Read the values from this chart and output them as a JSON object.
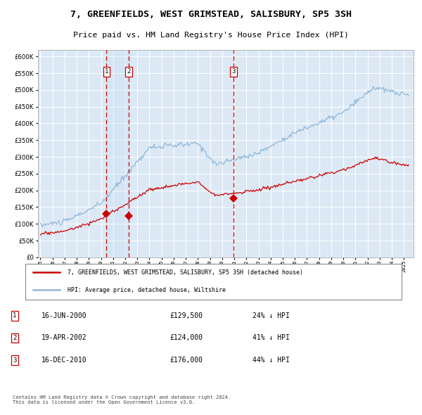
{
  "title": "7, GREENFIELDS, WEST GRIMSTEAD, SALISBURY, SP5 3SH",
  "subtitle": "Price paid vs. HM Land Registry's House Price Index (HPI)",
  "title_fontsize": 9.5,
  "subtitle_fontsize": 8.2,
  "background_color": "#ffffff",
  "plot_bg_color": "#dce9f5",
  "grid_color": "#ffffff",
  "hpi_color": "#92b8d8",
  "price_color": "#cc0000",
  "transactions": [
    {
      "label": "1",
      "date_num": 2000.46,
      "price": 129500,
      "x_label": "16-JUN-2000",
      "price_str": "£129,500",
      "hpi_str": "24% ↓ HPI"
    },
    {
      "label": "2",
      "date_num": 2002.3,
      "price": 124000,
      "x_label": "19-APR-2002",
      "price_str": "£124,000",
      "hpi_str": "41% ↓ HPI"
    },
    {
      "label": "3",
      "date_num": 2010.96,
      "price": 176000,
      "x_label": "16-DEC-2010",
      "price_str": "£176,000",
      "hpi_str": "44% ↓ HPI"
    }
  ],
  "legend_line1": "7, GREENFIELDS, WEST GRIMSTEAD, SALISBURY, SP5 3SH (detached house)",
  "legend_line2": "HPI: Average price, detached house, Wiltshire",
  "footnote": "Contains HM Land Registry data © Crown copyright and database right 2024.\nThis data is licensed under the Open Government Licence v3.0.",
  "ylim": [
    0,
    620000
  ],
  "xlim_start": 1994.8,
  "xlim_end": 2025.8
}
